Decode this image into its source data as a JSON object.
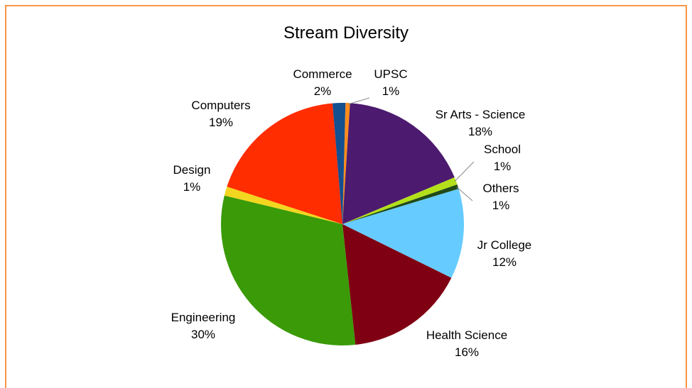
{
  "chart_data": {
    "type": "pie",
    "title": "Stream Diversity",
    "start_category": "UPSC",
    "direction": "clockwise",
    "series": [
      {
        "name": "UPSC",
        "label": "UPSC",
        "pct_label": "1%",
        "value": 0.6,
        "color": "#ff8c1a"
      },
      {
        "name": "Sr Arts - Science",
        "label": "Sr Arts - Science",
        "pct_label": "18%",
        "value": 17.7,
        "color": "#4c1a6e"
      },
      {
        "name": "School",
        "label": "School",
        "pct_label": "1%",
        "value": 1.0,
        "color": "#b3e01a"
      },
      {
        "name": "Others",
        "label": "Others",
        "pct_label": "1%",
        "value": 0.6,
        "color": "#214a17"
      },
      {
        "name": "Jr College",
        "label": "Jr College",
        "pct_label": "12%",
        "value": 12.0,
        "color": "#66ccff"
      },
      {
        "name": "Health Science",
        "label": "Health Science",
        "pct_label": "16%",
        "value": 16.0,
        "color": "#800013"
      },
      {
        "name": "Engineering",
        "label": "Engineering",
        "pct_label": "30%",
        "value": 30.5,
        "color": "#3a9a08"
      },
      {
        "name": "Design",
        "label": "Design",
        "pct_label": "1%",
        "value": 1.2,
        "color": "#f3d61f"
      },
      {
        "name": "Computers",
        "label": "Computers",
        "pct_label": "19%",
        "value": 18.7,
        "color": "#ff2d00"
      },
      {
        "name": "Commerce",
        "label": "Commerce",
        "pct_label": "2%",
        "value": 1.7,
        "color": "#144f8f"
      }
    ]
  }
}
